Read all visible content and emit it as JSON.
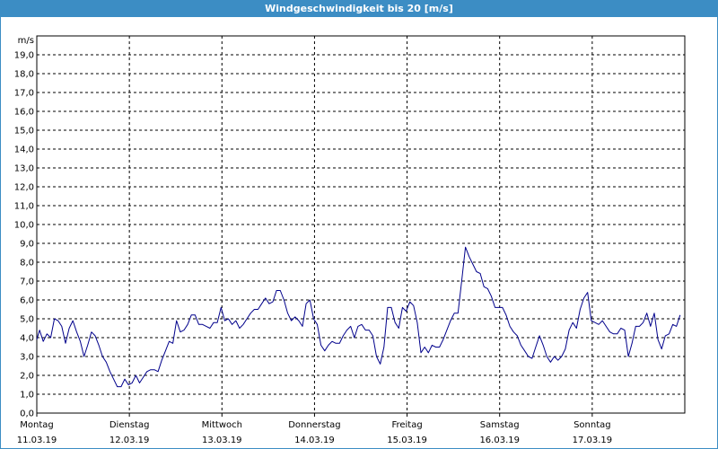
{
  "window": {
    "title": "Windgeschwindigkeit bis 20 [m/s]"
  },
  "colors": {
    "title_bar": "#3c8dc4",
    "series": "#00008b",
    "grid": "#000000"
  },
  "chart_data": {
    "type": "line",
    "title": "Windgeschwindigkeit bis 20 [m/s]",
    "ylabel": "m/s",
    "xlabel": "",
    "ylim": [
      0,
      20
    ],
    "xlim": [
      0,
      7
    ],
    "x_unit": "days from Montag 11.03.19 00:00",
    "yticks": [
      "0,0",
      "1,0",
      "2,0",
      "3,0",
      "4,0",
      "5,0",
      "6,0",
      "7,0",
      "8,0",
      "9,0",
      "10,0",
      "11,0",
      "12,0",
      "13,0",
      "14,0",
      "15,0",
      "16,0",
      "17,0",
      "18,0",
      "19,0"
    ],
    "xticks": [
      {
        "day": "Montag",
        "date": "11.03.19"
      },
      {
        "day": "Dienstag",
        "date": "12.03.19"
      },
      {
        "day": "Mittwoch",
        "date": "13.03.19"
      },
      {
        "day": "Donnerstag",
        "date": "14.03.19"
      },
      {
        "day": "Freitag",
        "date": "15.03.19"
      },
      {
        "day": "Samstag",
        "date": "16.03.19"
      },
      {
        "day": "Sonntag",
        "date": "17.03.19"
      }
    ],
    "grid": true,
    "legend": "none",
    "series": [
      {
        "values": [
          [
            0.0,
            3.9
          ],
          [
            0.03,
            4.4
          ],
          [
            0.07,
            3.8
          ],
          [
            0.11,
            4.2
          ],
          [
            0.15,
            4.0
          ],
          [
            0.19,
            5.0
          ],
          [
            0.23,
            4.9
          ],
          [
            0.27,
            4.6
          ],
          [
            0.31,
            3.7
          ],
          [
            0.35,
            4.5
          ],
          [
            0.39,
            4.9
          ],
          [
            0.43,
            4.3
          ],
          [
            0.47,
            3.8
          ],
          [
            0.51,
            3.0
          ],
          [
            0.55,
            3.6
          ],
          [
            0.59,
            4.3
          ],
          [
            0.63,
            4.1
          ],
          [
            0.67,
            3.6
          ],
          [
            0.71,
            3.0
          ],
          [
            0.75,
            2.7
          ],
          [
            0.79,
            2.2
          ],
          [
            0.83,
            1.8
          ],
          [
            0.87,
            1.4
          ],
          [
            0.91,
            1.4
          ],
          [
            0.95,
            1.8
          ],
          [
            0.99,
            1.5
          ],
          [
            1.03,
            1.6
          ],
          [
            1.07,
            2.0
          ],
          [
            1.11,
            1.6
          ],
          [
            1.15,
            1.9
          ],
          [
            1.19,
            2.2
          ],
          [
            1.23,
            2.3
          ],
          [
            1.27,
            2.3
          ],
          [
            1.31,
            2.2
          ],
          [
            1.35,
            2.8
          ],
          [
            1.39,
            3.3
          ],
          [
            1.43,
            3.8
          ],
          [
            1.47,
            3.7
          ],
          [
            1.51,
            4.9
          ],
          [
            1.55,
            4.3
          ],
          [
            1.59,
            4.4
          ],
          [
            1.63,
            4.7
          ],
          [
            1.67,
            5.2
          ],
          [
            1.71,
            5.2
          ],
          [
            1.75,
            4.7
          ],
          [
            1.79,
            4.7
          ],
          [
            1.83,
            4.6
          ],
          [
            1.87,
            4.5
          ],
          [
            1.91,
            4.8
          ],
          [
            1.95,
            4.8
          ],
          [
            1.99,
            5.6
          ],
          [
            2.03,
            4.9
          ],
          [
            2.07,
            5.0
          ],
          [
            2.11,
            4.7
          ],
          [
            2.15,
            4.9
          ],
          [
            2.19,
            4.5
          ],
          [
            2.23,
            4.7
          ],
          [
            2.27,
            5.0
          ],
          [
            2.31,
            5.3
          ],
          [
            2.35,
            5.5
          ],
          [
            2.39,
            5.5
          ],
          [
            2.43,
            5.8
          ],
          [
            2.47,
            6.1
          ],
          [
            2.51,
            5.8
          ],
          [
            2.55,
            5.9
          ],
          [
            2.59,
            6.5
          ],
          [
            2.63,
            6.5
          ],
          [
            2.67,
            6.0
          ],
          [
            2.71,
            5.3
          ],
          [
            2.75,
            4.9
          ],
          [
            2.79,
            5.1
          ],
          [
            2.83,
            4.9
          ],
          [
            2.87,
            4.6
          ],
          [
            2.91,
            5.8
          ],
          [
            2.95,
            6.0
          ],
          [
            2.99,
            5.0
          ],
          [
            3.03,
            4.7
          ],
          [
            3.07,
            3.6
          ],
          [
            3.11,
            3.3
          ],
          [
            3.15,
            3.6
          ],
          [
            3.19,
            3.8
          ],
          [
            3.23,
            3.7
          ],
          [
            3.27,
            3.7
          ],
          [
            3.31,
            4.1
          ],
          [
            3.35,
            4.4
          ],
          [
            3.39,
            4.6
          ],
          [
            3.43,
            4.0
          ],
          [
            3.47,
            4.6
          ],
          [
            3.51,
            4.7
          ],
          [
            3.55,
            4.4
          ],
          [
            3.59,
            4.4
          ],
          [
            3.63,
            4.1
          ],
          [
            3.67,
            3.0
          ],
          [
            3.71,
            2.6
          ],
          [
            3.75,
            3.5
          ],
          [
            3.79,
            5.6
          ],
          [
            3.83,
            5.6
          ],
          [
            3.87,
            4.8
          ],
          [
            3.91,
            4.5
          ],
          [
            3.95,
            5.6
          ],
          [
            3.99,
            5.4
          ],
          [
            4.03,
            5.9
          ],
          [
            4.07,
            5.7
          ],
          [
            4.11,
            4.8
          ],
          [
            4.15,
            3.2
          ],
          [
            4.19,
            3.5
          ],
          [
            4.23,
            3.2
          ],
          [
            4.27,
            3.6
          ],
          [
            4.31,
            3.5
          ],
          [
            4.35,
            3.5
          ],
          [
            4.39,
            3.9
          ],
          [
            4.43,
            4.4
          ],
          [
            4.47,
            4.9
          ],
          [
            4.51,
            5.3
          ],
          [
            4.55,
            5.3
          ],
          [
            4.59,
            7.0
          ],
          [
            4.63,
            8.8
          ],
          [
            4.67,
            8.3
          ],
          [
            4.71,
            7.9
          ],
          [
            4.75,
            7.5
          ],
          [
            4.79,
            7.4
          ],
          [
            4.83,
            6.7
          ],
          [
            4.87,
            6.6
          ],
          [
            4.91,
            6.2
          ],
          [
            4.95,
            5.6
          ],
          [
            4.99,
            5.6
          ],
          [
            5.03,
            5.6
          ],
          [
            5.07,
            5.2
          ],
          [
            5.11,
            4.6
          ],
          [
            5.15,
            4.3
          ],
          [
            5.19,
            4.1
          ],
          [
            5.23,
            3.6
          ],
          [
            5.27,
            3.3
          ],
          [
            5.31,
            3.0
          ],
          [
            5.35,
            2.9
          ],
          [
            5.39,
            3.5
          ],
          [
            5.43,
            4.1
          ],
          [
            5.47,
            3.6
          ],
          [
            5.51,
            3.0
          ],
          [
            5.55,
            2.7
          ],
          [
            5.59,
            3.0
          ],
          [
            5.63,
            2.8
          ],
          [
            5.67,
            3.0
          ],
          [
            5.71,
            3.4
          ],
          [
            5.75,
            4.4
          ],
          [
            5.79,
            4.8
          ],
          [
            5.83,
            4.5
          ],
          [
            5.87,
            5.5
          ],
          [
            5.91,
            6.1
          ],
          [
            5.95,
            6.4
          ],
          [
            5.99,
            4.9
          ],
          [
            6.03,
            4.8
          ],
          [
            6.07,
            4.7
          ],
          [
            6.11,
            4.9
          ],
          [
            6.15,
            4.6
          ],
          [
            6.19,
            4.3
          ],
          [
            6.23,
            4.2
          ],
          [
            6.27,
            4.2
          ],
          [
            6.31,
            4.5
          ],
          [
            6.35,
            4.4
          ],
          [
            6.39,
            3.0
          ],
          [
            6.43,
            3.7
          ],
          [
            6.47,
            4.6
          ],
          [
            6.51,
            4.6
          ],
          [
            6.55,
            4.8
          ],
          [
            6.59,
            5.3
          ],
          [
            6.63,
            4.6
          ],
          [
            6.67,
            5.3
          ],
          [
            6.71,
            3.9
          ],
          [
            6.75,
            3.4
          ],
          [
            6.79,
            4.1
          ],
          [
            6.83,
            4.2
          ],
          [
            6.87,
            4.7
          ],
          [
            6.91,
            4.6
          ],
          [
            6.95,
            5.2
          ]
        ]
      }
    ]
  }
}
